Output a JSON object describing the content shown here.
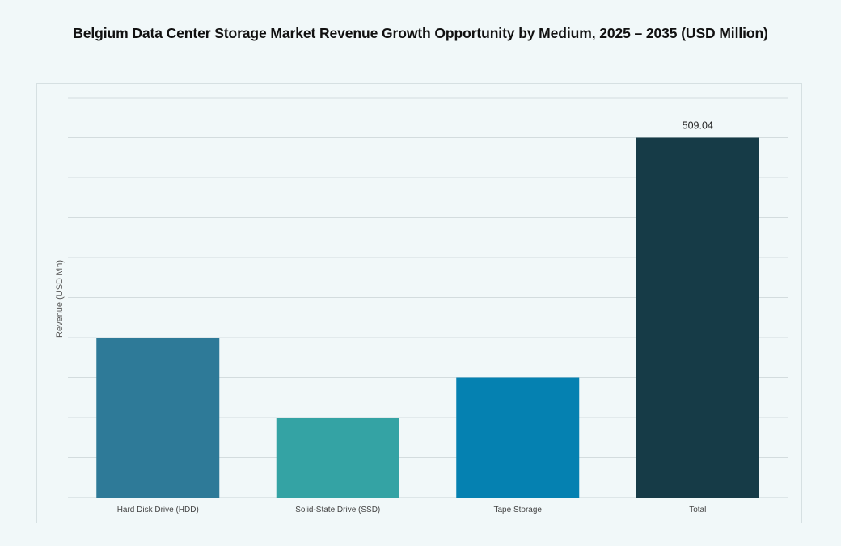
{
  "chart_data": {
    "type": "bar",
    "title": "Belgium Data Center Storage Market Revenue Growth Opportunity by Medium, 2025 – 2035 (USD Million)",
    "xlabel": "",
    "ylabel": "Revenue (USD Mn)",
    "categories": [
      "Hard Disk Drive (HDD)",
      "Solid-State Drive (SSD)",
      "Tape Storage",
      "Total"
    ],
    "values": [
      226.24,
      113.12,
      169.68,
      509.04
    ],
    "data_labels": [
      "",
      "",
      "",
      "509.04"
    ],
    "colors": [
      "#2e7a98",
      "#34a3a4",
      "#0581b1",
      "#163b47"
    ],
    "ylim": [
      0,
      565.6
    ],
    "y_tick_labels_shown": false,
    "grid": true,
    "legend": "none"
  }
}
